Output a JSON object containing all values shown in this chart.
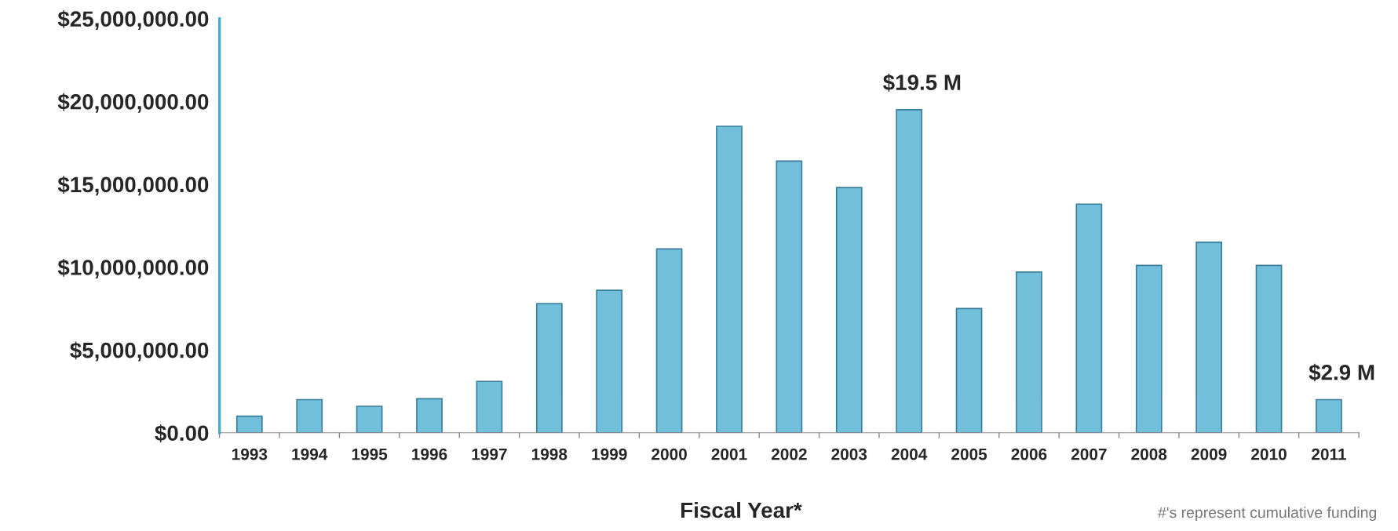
{
  "chart_data": {
    "type": "bar",
    "xlabel": "Fiscal Year*",
    "categories": [
      "1993",
      "1994",
      "1995",
      "1996",
      "1997",
      "1998",
      "1999",
      "2000",
      "2001",
      "2002",
      "2003",
      "2004",
      "2005",
      "2006",
      "2007",
      "2008",
      "2009",
      "2010",
      "2011"
    ],
    "values": [
      1000000,
      2000000,
      1600000,
      2050000,
      3100000,
      7800000,
      8600000,
      11100000,
      18500000,
      16400000,
      14800000,
      19500000,
      7500000,
      9700000,
      13800000,
      10100000,
      11500000,
      10100000,
      2000000
    ],
    "color": "#72bfdb",
    "ylim": [
      0,
      25000000
    ],
    "yticks": [
      {
        "value": 0,
        "label": "$0.00"
      },
      {
        "value": 5000000,
        "label": "$5,000,000.00"
      },
      {
        "value": 10000000,
        "label": "$10,000,000.00"
      },
      {
        "value": 15000000,
        "label": "$15,000,000.00"
      },
      {
        "value": 20000000,
        "label": "$20,000,000.00"
      },
      {
        "value": 25000000,
        "label": "$25,000,000.00"
      }
    ],
    "grid": false,
    "annotations": [
      {
        "text": "$19.5 M",
        "x": "2004",
        "y": 19500000
      },
      {
        "text": "$2.9 M",
        "x": "2011",
        "y": 2000000
      },
      "#'s represent cumulative funding"
    ]
  }
}
